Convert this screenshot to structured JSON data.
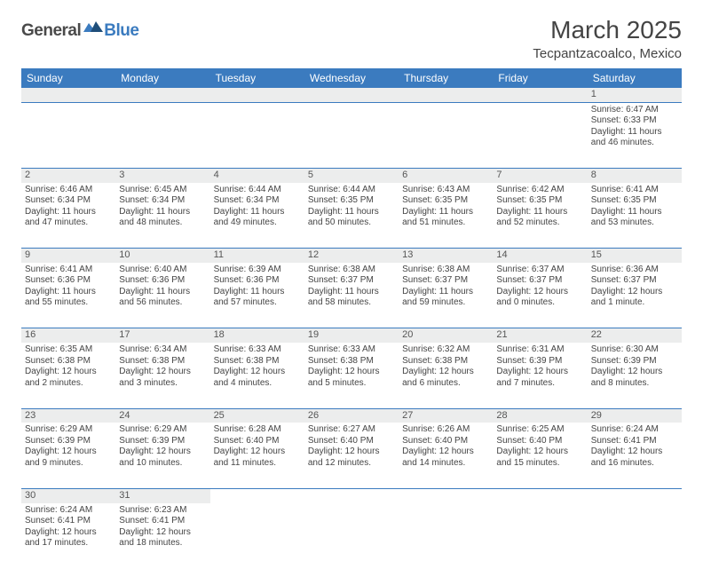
{
  "logo": {
    "part1": "General",
    "part2": "Blue"
  },
  "title": "March 2025",
  "location": "Tecpantzacoalco, Mexico",
  "colors": {
    "header_bg": "#3b7bbf",
    "daynum_bg": "#eceded",
    "text": "#444444"
  },
  "weekdays": [
    "Sunday",
    "Monday",
    "Tuesday",
    "Wednesday",
    "Thursday",
    "Friday",
    "Saturday"
  ],
  "weeks": [
    [
      null,
      null,
      null,
      null,
      null,
      null,
      {
        "n": "1",
        "sr": "Sunrise: 6:47 AM",
        "ss": "Sunset: 6:33 PM",
        "dl": "Daylight: 11 hours and 46 minutes."
      }
    ],
    [
      {
        "n": "2",
        "sr": "Sunrise: 6:46 AM",
        "ss": "Sunset: 6:34 PM",
        "dl": "Daylight: 11 hours and 47 minutes."
      },
      {
        "n": "3",
        "sr": "Sunrise: 6:45 AM",
        "ss": "Sunset: 6:34 PM",
        "dl": "Daylight: 11 hours and 48 minutes."
      },
      {
        "n": "4",
        "sr": "Sunrise: 6:44 AM",
        "ss": "Sunset: 6:34 PM",
        "dl": "Daylight: 11 hours and 49 minutes."
      },
      {
        "n": "5",
        "sr": "Sunrise: 6:44 AM",
        "ss": "Sunset: 6:35 PM",
        "dl": "Daylight: 11 hours and 50 minutes."
      },
      {
        "n": "6",
        "sr": "Sunrise: 6:43 AM",
        "ss": "Sunset: 6:35 PM",
        "dl": "Daylight: 11 hours and 51 minutes."
      },
      {
        "n": "7",
        "sr": "Sunrise: 6:42 AM",
        "ss": "Sunset: 6:35 PM",
        "dl": "Daylight: 11 hours and 52 minutes."
      },
      {
        "n": "8",
        "sr": "Sunrise: 6:41 AM",
        "ss": "Sunset: 6:35 PM",
        "dl": "Daylight: 11 hours and 53 minutes."
      }
    ],
    [
      {
        "n": "9",
        "sr": "Sunrise: 6:41 AM",
        "ss": "Sunset: 6:36 PM",
        "dl": "Daylight: 11 hours and 55 minutes."
      },
      {
        "n": "10",
        "sr": "Sunrise: 6:40 AM",
        "ss": "Sunset: 6:36 PM",
        "dl": "Daylight: 11 hours and 56 minutes."
      },
      {
        "n": "11",
        "sr": "Sunrise: 6:39 AM",
        "ss": "Sunset: 6:36 PM",
        "dl": "Daylight: 11 hours and 57 minutes."
      },
      {
        "n": "12",
        "sr": "Sunrise: 6:38 AM",
        "ss": "Sunset: 6:37 PM",
        "dl": "Daylight: 11 hours and 58 minutes."
      },
      {
        "n": "13",
        "sr": "Sunrise: 6:38 AM",
        "ss": "Sunset: 6:37 PM",
        "dl": "Daylight: 11 hours and 59 minutes."
      },
      {
        "n": "14",
        "sr": "Sunrise: 6:37 AM",
        "ss": "Sunset: 6:37 PM",
        "dl": "Daylight: 12 hours and 0 minutes."
      },
      {
        "n": "15",
        "sr": "Sunrise: 6:36 AM",
        "ss": "Sunset: 6:37 PM",
        "dl": "Daylight: 12 hours and 1 minute."
      }
    ],
    [
      {
        "n": "16",
        "sr": "Sunrise: 6:35 AM",
        "ss": "Sunset: 6:38 PM",
        "dl": "Daylight: 12 hours and 2 minutes."
      },
      {
        "n": "17",
        "sr": "Sunrise: 6:34 AM",
        "ss": "Sunset: 6:38 PM",
        "dl": "Daylight: 12 hours and 3 minutes."
      },
      {
        "n": "18",
        "sr": "Sunrise: 6:33 AM",
        "ss": "Sunset: 6:38 PM",
        "dl": "Daylight: 12 hours and 4 minutes."
      },
      {
        "n": "19",
        "sr": "Sunrise: 6:33 AM",
        "ss": "Sunset: 6:38 PM",
        "dl": "Daylight: 12 hours and 5 minutes."
      },
      {
        "n": "20",
        "sr": "Sunrise: 6:32 AM",
        "ss": "Sunset: 6:38 PM",
        "dl": "Daylight: 12 hours and 6 minutes."
      },
      {
        "n": "21",
        "sr": "Sunrise: 6:31 AM",
        "ss": "Sunset: 6:39 PM",
        "dl": "Daylight: 12 hours and 7 minutes."
      },
      {
        "n": "22",
        "sr": "Sunrise: 6:30 AM",
        "ss": "Sunset: 6:39 PM",
        "dl": "Daylight: 12 hours and 8 minutes."
      }
    ],
    [
      {
        "n": "23",
        "sr": "Sunrise: 6:29 AM",
        "ss": "Sunset: 6:39 PM",
        "dl": "Daylight: 12 hours and 9 minutes."
      },
      {
        "n": "24",
        "sr": "Sunrise: 6:29 AM",
        "ss": "Sunset: 6:39 PM",
        "dl": "Daylight: 12 hours and 10 minutes."
      },
      {
        "n": "25",
        "sr": "Sunrise: 6:28 AM",
        "ss": "Sunset: 6:40 PM",
        "dl": "Daylight: 12 hours and 11 minutes."
      },
      {
        "n": "26",
        "sr": "Sunrise: 6:27 AM",
        "ss": "Sunset: 6:40 PM",
        "dl": "Daylight: 12 hours and 12 minutes."
      },
      {
        "n": "27",
        "sr": "Sunrise: 6:26 AM",
        "ss": "Sunset: 6:40 PM",
        "dl": "Daylight: 12 hours and 14 minutes."
      },
      {
        "n": "28",
        "sr": "Sunrise: 6:25 AM",
        "ss": "Sunset: 6:40 PM",
        "dl": "Daylight: 12 hours and 15 minutes."
      },
      {
        "n": "29",
        "sr": "Sunrise: 6:24 AM",
        "ss": "Sunset: 6:41 PM",
        "dl": "Daylight: 12 hours and 16 minutes."
      }
    ],
    [
      {
        "n": "30",
        "sr": "Sunrise: 6:24 AM",
        "ss": "Sunset: 6:41 PM",
        "dl": "Daylight: 12 hours and 17 minutes."
      },
      {
        "n": "31",
        "sr": "Sunrise: 6:23 AM",
        "ss": "Sunset: 6:41 PM",
        "dl": "Daylight: 12 hours and 18 minutes."
      },
      null,
      null,
      null,
      null,
      null
    ]
  ]
}
